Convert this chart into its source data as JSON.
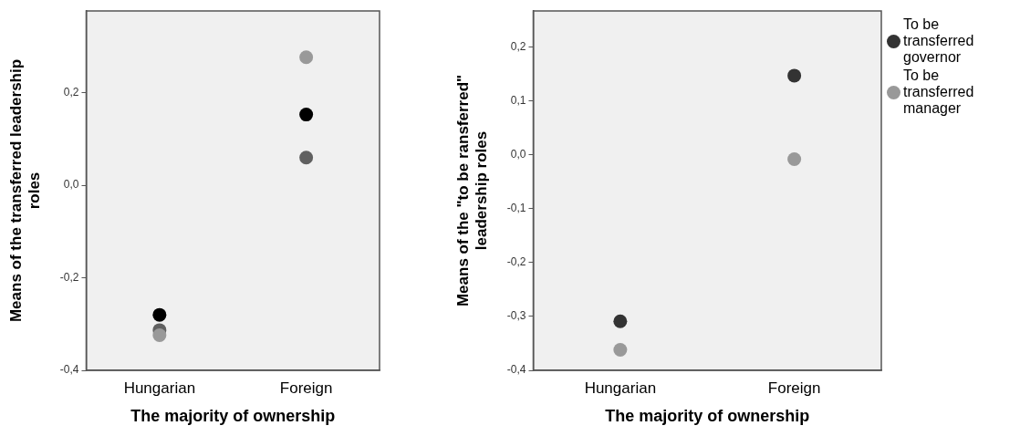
{
  "chart_data": [
    {
      "type": "scatter",
      "xlabel": "The majority of ownership",
      "ylabel": "Means of the transferred leadership roles",
      "categories": [
        "Hungarian",
        "Foreign"
      ],
      "series": [
        {
          "color": "#000000",
          "values": [
            -0.28,
            0.153
          ]
        },
        {
          "color": "#606060",
          "values": [
            -0.313,
            0.06
          ]
        },
        {
          "color": "#999999",
          "values": [
            -0.324,
            0.277
          ]
        }
      ],
      "ylim": [
        -0.4,
        0.377
      ],
      "yticks": [
        {
          "value": -0.4,
          "label": "-0,4"
        },
        {
          "value": -0.2,
          "label": "-0,2"
        },
        {
          "value": 0,
          "label": "0,0"
        },
        {
          "value": 0.2,
          "label": "0,2"
        }
      ],
      "grid": false,
      "legend": false,
      "marker": "circle"
    },
    {
      "type": "scatter",
      "xlabel": "The majority of ownership",
      "ylabel": "Means of the \"to be ransferred\" leadership roles",
      "categories": [
        "Hungarian",
        "Foreign"
      ],
      "series": [
        {
          "name": "To be transferred governor",
          "color": "#333333",
          "values": [
            -0.309,
            0.147
          ]
        },
        {
          "name": "To be transferred manager",
          "color": "#999999",
          "values": [
            -0.362,
            -0.008
          ]
        }
      ],
      "ylim": [
        -0.4,
        0.267
      ],
      "yticks": [
        {
          "value": -0.4,
          "label": "-0,4"
        },
        {
          "value": -0.3,
          "label": "-0,3"
        },
        {
          "value": -0.2,
          "label": "-0,2"
        },
        {
          "value": -0.1,
          "label": "-0,1"
        },
        {
          "value": 0,
          "label": "0,0"
        },
        {
          "value": 0.1,
          "label": "0,1"
        },
        {
          "value": 0.2,
          "label": "0,2"
        }
      ],
      "grid": false,
      "legend": "right",
      "marker": "circle"
    }
  ]
}
